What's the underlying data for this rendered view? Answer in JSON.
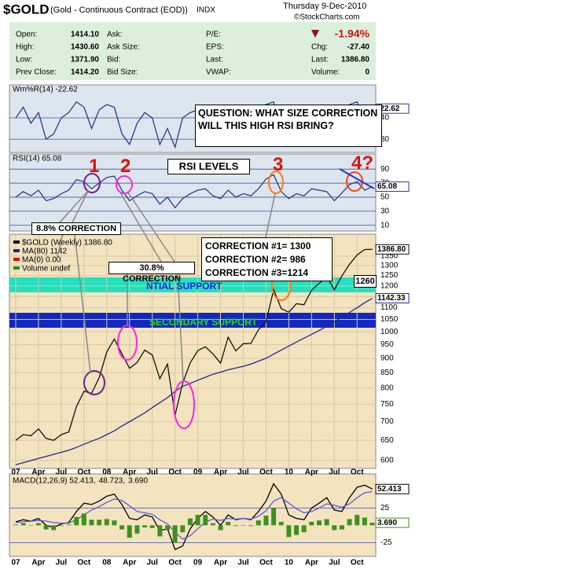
{
  "header": {
    "symbol": "$GOLD",
    "name": "(Gold - Continuous Contract (EOD))",
    "exchange": "INDX",
    "date": "Thursday  9-Dec-2010",
    "source": "©StockCharts.com",
    "change_pct": "-1.94%",
    "col1_labels": [
      "Open:",
      "High:",
      "Low:",
      "Prev Close:"
    ],
    "col1_values": [
      "1414.10",
      "1430.60",
      "1371.90",
      "1414.20"
    ],
    "col2_labels": [
      "Ask:",
      "Ask Size:",
      "Bid:",
      "Bid Size:"
    ],
    "col3_labels": [
      "P/E:",
      "EPS:",
      "Last:",
      "VWAP:"
    ],
    "col4_labels": [
      "Chg:",
      "Last:",
      "Volume:"
    ],
    "col4_values": [
      "-27.40",
      "1386.80",
      "0"
    ]
  },
  "chart_data": [
    {
      "type": "line",
      "title": "Wm%R(14) -22.62",
      "ylim": [
        -99,
        16
      ],
      "yticks": [
        {
          "value": -40,
          "label": "40"
        },
        {
          "value": -80,
          "label": "80"
        }
      ],
      "series": [
        {
          "name": "Wm%R(14)",
          "color": "#2a3a8c",
          "values": [
            -40,
            -20,
            -50,
            -30,
            -80,
            -70,
            -40,
            -30,
            -10,
            -20,
            -60,
            -25,
            -15,
            -20,
            -70,
            -90,
            -50,
            -30,
            -40,
            -90,
            -60,
            -95,
            -40,
            -30,
            -25,
            -20,
            -70,
            -80,
            -30,
            -60,
            -40,
            -50,
            -20,
            -15,
            -10,
            -70,
            -80,
            -40,
            -60,
            -20,
            -30,
            -25,
            -85,
            -35,
            -15,
            -10,
            -60,
            -22.62
          ],
          "value_labels": [
            null,
            null,
            null,
            null,
            null,
            null,
            null,
            null,
            null,
            null,
            null,
            null,
            null,
            null,
            null,
            null,
            null,
            null,
            null,
            null,
            null,
            null,
            null,
            null,
            null,
            null,
            null,
            null,
            null,
            null,
            null,
            null,
            null,
            null,
            null,
            null,
            null,
            null,
            null,
            null,
            null,
            null,
            null,
            null,
            null,
            null,
            null,
            "-22.62"
          ]
        }
      ]
    },
    {
      "type": "line",
      "title": "RSI(14) 65.08",
      "ylim": [
        4,
        107
      ],
      "yticks": [
        90,
        70,
        50,
        30,
        10
      ],
      "series": [
        {
          "name": "RSI(14)",
          "color": "#2a3a8c",
          "values": [
            50,
            58,
            52,
            60,
            45,
            48,
            55,
            60,
            75,
            72,
            62,
            70,
            78,
            80,
            60,
            45,
            52,
            58,
            55,
            40,
            50,
            35,
            48,
            55,
            60,
            62,
            52,
            48,
            60,
            50,
            55,
            52,
            62,
            76,
            82,
            58,
            48,
            55,
            52,
            62,
            60,
            58,
            45,
            56,
            68,
            72,
            60,
            65.08
          ],
          "value_labels": [
            null,
            null,
            null,
            null,
            null,
            null,
            null,
            null,
            null,
            null,
            null,
            null,
            null,
            null,
            null,
            null,
            null,
            null,
            null,
            null,
            null,
            null,
            null,
            null,
            null,
            null,
            null,
            null,
            null,
            null,
            null,
            null,
            null,
            null,
            null,
            null,
            null,
            null,
            null,
            null,
            null,
            null,
            null,
            null,
            null,
            null,
            null,
            "65.08"
          ]
        }
      ]
    },
    {
      "type": "line",
      "log": true,
      "ylim": [
        587,
        1450
      ],
      "yticks": [
        600,
        650,
        700,
        750,
        800,
        850,
        900,
        950,
        1000,
        1050,
        1100,
        1150,
        1200,
        1250,
        1300,
        1350
      ],
      "grid": true,
      "categories": [
        "07",
        null,
        null,
        "Apr",
        null,
        null,
        "Jul",
        null,
        null,
        "Oct",
        null,
        null,
        "08",
        null,
        null,
        "Apr",
        null,
        null,
        "Jul",
        null,
        null,
        "Oct",
        null,
        null,
        "09",
        null,
        null,
        "Apr",
        null,
        null,
        "Jul",
        null,
        null,
        "Oct",
        null,
        null,
        "10",
        null,
        null,
        "Apr",
        null,
        null,
        "Jul",
        null,
        null,
        "Oct",
        null,
        null
      ],
      "legend_extra": [
        "MA(0) 0.00",
        "Volume undef"
      ],
      "series": [
        {
          "name": "$GOLD (Weekly) 1386.80",
          "color": "#111111",
          "values": [
            650,
            665,
            662,
            680,
            655,
            650,
            665,
            672,
            743,
            790,
            783,
            834,
            923,
            972,
            916,
            865,
            885,
            930,
            912,
            830,
            880,
            718,
            815,
            884,
            928,
            942,
            916,
            883,
            979,
            927,
            954,
            955,
            1008,
            1040,
            1182,
            1096,
            1081,
            1118,
            1113,
            1180,
            1212,
            1244,
            1181,
            1248,
            1307,
            1357,
            1386,
            1386.8
          ],
          "value_labels": [
            null,
            null,
            null,
            null,
            null,
            null,
            null,
            null,
            null,
            null,
            null,
            null,
            null,
            null,
            null,
            null,
            null,
            null,
            null,
            null,
            null,
            null,
            null,
            null,
            null,
            null,
            null,
            null,
            null,
            null,
            null,
            null,
            null,
            null,
            null,
            null,
            null,
            null,
            null,
            null,
            null,
            null,
            null,
            null,
            null,
            null,
            null,
            "1386.80"
          ]
        },
        {
          "name": "MA(80) 1142",
          "color": "#1c2a8c",
          "values": [
            590,
            595,
            600,
            605,
            610,
            615,
            620,
            625,
            632,
            640,
            648,
            655,
            665,
            675,
            688,
            700,
            712,
            725,
            740,
            755,
            770,
            790,
            805,
            815,
            825,
            835,
            845,
            852,
            860,
            866,
            872,
            880,
            890,
            900,
            915,
            930,
            945,
            960,
            975,
            990,
            1005,
            1022,
            1040,
            1060,
            1080,
            1100,
            1122,
            1142.33
          ],
          "value_labels": [
            null,
            null,
            null,
            null,
            null,
            null,
            null,
            null,
            null,
            null,
            null,
            null,
            null,
            null,
            null,
            null,
            null,
            null,
            null,
            null,
            null,
            null,
            null,
            null,
            null,
            null,
            null,
            null,
            null,
            null,
            null,
            null,
            null,
            null,
            null,
            null,
            null,
            null,
            null,
            null,
            null,
            null,
            null,
            null,
            null,
            null,
            null,
            "1142.33"
          ]
        }
      ]
    },
    {
      "type": "line",
      "ylim": [
        -45,
        72
      ],
      "yticks": [
        25,
        -25
      ],
      "series": [
        {
          "name": "MACD(12,26,9) 52.413,",
          "color": "#000000",
          "values": [
            5,
            8,
            6,
            10,
            0,
            -3,
            2,
            4,
            20,
            32,
            30,
            35,
            42,
            45,
            30,
            10,
            8,
            15,
            12,
            -8,
            -5,
            -35,
            -30,
            -5,
            10,
            20,
            12,
            0,
            15,
            8,
            10,
            8,
            20,
            35,
            60,
            45,
            15,
            10,
            8,
            25,
            32,
            40,
            22,
            20,
            40,
            55,
            58,
            52.413
          ],
          "value_labels": [
            null,
            null,
            null,
            null,
            null,
            null,
            null,
            null,
            null,
            null,
            null,
            null,
            null,
            null,
            null,
            null,
            null,
            null,
            null,
            null,
            null,
            null,
            null,
            null,
            null,
            null,
            null,
            null,
            null,
            null,
            null,
            null,
            null,
            null,
            null,
            null,
            null,
            null,
            null,
            null,
            null,
            null,
            null,
            null,
            null,
            null,
            null,
            "52.413"
          ]
        },
        {
          "name": "48.723,",
          "color": "#5a5adc",
          "values": [
            4,
            5,
            6,
            7,
            6,
            4,
            3,
            3,
            8,
            15,
            22,
            27,
            33,
            38,
            36,
            28,
            20,
            18,
            16,
            8,
            2,
            -10,
            -20,
            -15,
            -5,
            5,
            9,
            7,
            10,
            9,
            10,
            9,
            13,
            21,
            35,
            40,
            32,
            24,
            18,
            20,
            25,
            31,
            29,
            26,
            31,
            40,
            47,
            48.723
          ]
        },
        {
          "name": "3.690",
          "color": "#3f8f1f",
          "type": "bar",
          "values": [
            1,
            3,
            0,
            3,
            -6,
            -7,
            -1,
            1,
            12,
            17,
            8,
            8,
            9,
            7,
            -6,
            -18,
            -12,
            -3,
            -4,
            -16,
            -7,
            -25,
            -10,
            10,
            15,
            15,
            3,
            -7,
            5,
            -1,
            0,
            -1,
            7,
            14,
            25,
            5,
            -17,
            -14,
            -10,
            5,
            7,
            9,
            -7,
            -6,
            9,
            15,
            11,
            3.69
          ],
          "value_labels": [
            null,
            null,
            null,
            null,
            null,
            null,
            null,
            null,
            null,
            null,
            null,
            null,
            null,
            null,
            null,
            null,
            null,
            null,
            null,
            null,
            null,
            null,
            null,
            null,
            null,
            null,
            null,
            null,
            null,
            null,
            null,
            null,
            null,
            null,
            null,
            null,
            null,
            null,
            null,
            null,
            null,
            null,
            null,
            null,
            null,
            null,
            null,
            "3.690"
          ]
        }
      ]
    }
  ],
  "annotations": [
    "QUESTION: WHAT SIZE CORRECTION WILL THIS HIGH RSI BRING?",
    "1",
    "2",
    "3",
    "4?",
    "RSI LEVELS",
    "8.8% CORRECTION",
    "30.8% CORRECTION",
    "CORRECTION #1= 1300",
    "CORRECTION #2= 986",
    "CORRECTION #3=1214",
    "NTIAL SUPPORT",
    "SECONDARY SUPPORT",
    "1260"
  ]
}
